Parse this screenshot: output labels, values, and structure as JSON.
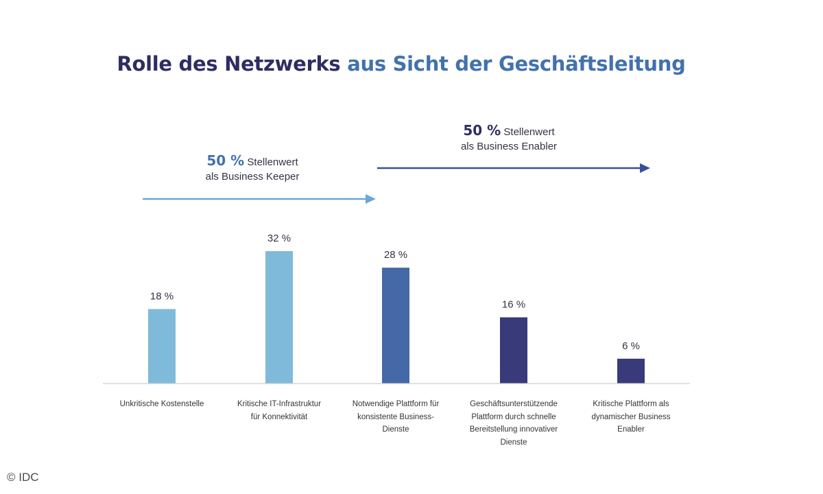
{
  "title": {
    "part1": "Rolle des Netzwerks",
    "part2": "aus Sicht der Geschäftsleitung"
  },
  "groups": {
    "keeper": {
      "pct": "50 %",
      "line1": "Stellenwert",
      "line2": "als Business Keeper"
    },
    "enabler": {
      "pct": "50 %",
      "line1": "Stellenwert",
      "line2": "als Business Enabler"
    }
  },
  "chart_data": {
    "type": "bar",
    "title": "Rolle des Netzwerks aus Sicht der Geschäftsleitung",
    "xlabel": "",
    "ylabel": "",
    "ylim": [
      0,
      35
    ],
    "grid": false,
    "categories": [
      "Unkritische Kostenstelle",
      "Kritische IT-Infrastruktur für Konnektivität",
      "Notwendige Plattform für konsistente Business-Dienste",
      "Geschäftsunterstützende Plattform durch schnelle Bereitstellung innovativer Dienste",
      "Kritische Plattform als dynamischer Business Enabler"
    ],
    "category_lines": [
      [
        "Unkritische Kostenstelle"
      ],
      [
        "Kritische IT-Infrastruktur",
        "für Konnektivität"
      ],
      [
        "Notwendige Plattform für",
        "konsistente Business-",
        "Dienste"
      ],
      [
        "Geschäftsunterstützende",
        "Plattform durch schnelle",
        "Bereitstellung innovativer",
        "Dienste"
      ],
      [
        "Kritische Plattform als",
        "dynamischer Business",
        "Enabler"
      ]
    ],
    "values": [
      18,
      32,
      28,
      16,
      6
    ],
    "data_labels": [
      "18 %",
      "32 %",
      "28 %",
      "16 %",
      "6 %"
    ],
    "colors": [
      "#7fbadb",
      "#7fbadb",
      "#4569a6",
      "#393a7a",
      "#393a7a"
    ]
  },
  "colors": {
    "keeper_arrow": "#6da7d6",
    "enabler_arrow": "#3a4f9a",
    "axis": "#cfcfcf"
  },
  "copyright": "© IDC"
}
